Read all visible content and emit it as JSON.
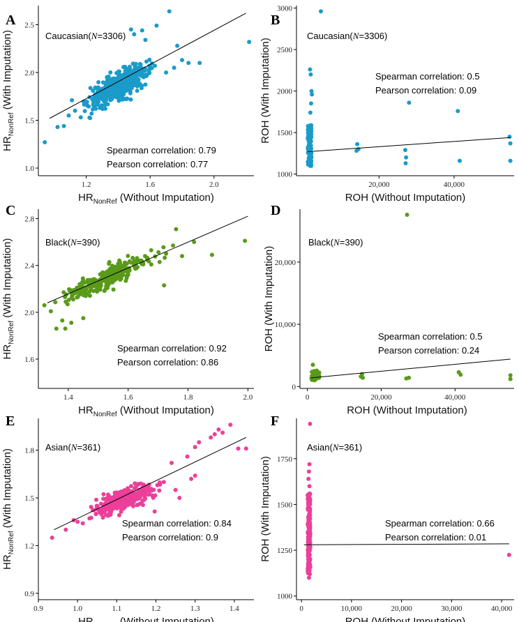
{
  "colors": {
    "caucasian": "#1a9bc9",
    "black": "#5a9a1a",
    "asian": "#ec3f99"
  },
  "chart_data": [
    {
      "type": "scatter",
      "letter": "A",
      "group": "Caucasian(",
      "n_label": "N",
      "n_value": "=3306)",
      "xlabel_prefix": "HR",
      "xlabel_sub": "NonRef",
      "xlabel_suffix": " (Without Imputation)",
      "ylabel_prefix": "HR",
      "ylabel_sub": "NonRef",
      "ylabel_suffix": " (With Imputation)",
      "xlim": [
        0.9,
        2.25
      ],
      "ylim": [
        0.92,
        2.7
      ],
      "xticks": [
        1.2,
        1.6,
        2.0
      ],
      "xtick_labels": [
        "1.2",
        "1.6",
        "2.0"
      ],
      "yticks": [
        1.0,
        1.5,
        2.0,
        2.5
      ],
      "ytick_labels": [
        "1.0",
        "1.5",
        "2.0",
        "2.5"
      ],
      "spearman": "Spearman correlation: 0.79",
      "pearson": "Pearson correlation: 0.77",
      "color_key": "caucasian",
      "fit": [
        [
          0.97,
          1.52
        ],
        [
          2.2,
          2.62
        ]
      ],
      "cluster": {
        "cx": 1.4,
        "cy": 1.86,
        "sx": 0.09,
        "sy": 0.1,
        "rho": 0.75,
        "n": 520
      },
      "points": [
        [
          0.94,
          1.27
        ],
        [
          1.02,
          1.43
        ],
        [
          1.06,
          1.44
        ],
        [
          1.09,
          1.55
        ],
        [
          1.11,
          1.71
        ],
        [
          1.13,
          1.6
        ],
        [
          1.64,
          2.49
        ],
        [
          1.72,
          2.64
        ],
        [
          1.77,
          2.28
        ],
        [
          1.84,
          2.1
        ],
        [
          1.91,
          2.1
        ],
        [
          2.22,
          2.32
        ],
        [
          1.5,
          2.4
        ],
        [
          1.57,
          2.34
        ],
        [
          1.55,
          2.44
        ],
        [
          1.7,
          2.0
        ],
        [
          1.75,
          2.05
        ],
        [
          1.8,
          2.13
        ],
        [
          1.4,
          1.92
        ],
        [
          1.48,
          2.45
        ]
      ]
    },
    {
      "type": "scatter",
      "letter": "B",
      "group": "Caucasian(",
      "n_label": "N",
      "n_value": "=3306)",
      "xlabel": "ROH (Without Imputation)",
      "ylabel": "ROH (With Imputation)",
      "xlim": [
        -2000,
        56000
      ],
      "ylim": [
        980,
        3030
      ],
      "xticks": [
        20000,
        40000
      ],
      "xtick_labels": [
        "20,000",
        "40,000"
      ],
      "yticks": [
        1000,
        1500,
        2000,
        2500,
        3000
      ],
      "ytick_labels": [
        "1000",
        "1500",
        "2000",
        "2500",
        "3000"
      ],
      "spearman": "Spearman correlation: 0.5",
      "pearson": "Pearson correlation: 0.09",
      "color_key": "caucasian",
      "fit": [
        [
          1000,
          1270
        ],
        [
          55000,
          1440
        ]
      ],
      "strip": {
        "x": 1500,
        "xj": 1000,
        "y0": 1090,
        "y1": 1600,
        "n": 120
      },
      "points": [
        [
          1800,
          2200
        ],
        [
          1600,
          2260
        ],
        [
          2000,
          2000
        ],
        [
          2100,
          1960
        ],
        [
          1900,
          1850
        ],
        [
          1700,
          1740
        ],
        [
          4500,
          2960
        ],
        [
          14200,
          1360
        ],
        [
          14500,
          1300
        ],
        [
          14000,
          1280
        ],
        [
          27000,
          1290
        ],
        [
          27200,
          1200
        ],
        [
          27100,
          1130
        ],
        [
          28000,
          1860
        ],
        [
          41000,
          1760
        ],
        [
          41500,
          1160
        ],
        [
          54800,
          1450
        ],
        [
          55000,
          1370
        ],
        [
          55000,
          1160
        ]
      ]
    },
    {
      "type": "scatter",
      "letter": "C",
      "group": "Black(",
      "n_label": "N",
      "n_value": "=390)",
      "xlabel_prefix": "HR",
      "xlabel_sub": "NonRef",
      "xlabel_suffix": " (Without Imputation)",
      "ylabel_prefix": "HR",
      "ylabel_sub": "NonRef",
      "ylabel_suffix": " (With Imputation)",
      "xlim": [
        1.3,
        2.02
      ],
      "ylim": [
        1.35,
        2.88
      ],
      "xticks": [
        1.4,
        1.6,
        1.8,
        2.0
      ],
      "xtick_labels": [
        "1.4",
        "1.6",
        "1.8",
        "2.0"
      ],
      "yticks": [
        1.6,
        2.0,
        2.4,
        2.8
      ],
      "ytick_labels": [
        "1.6",
        "2.0",
        "2.4",
        "2.8"
      ],
      "spearman": "Spearman correlation: 0.92",
      "pearson": "Pearson correlation: 0.86",
      "color_key": "black",
      "fit": [
        [
          1.33,
          2.08
        ],
        [
          2.0,
          2.82
        ]
      ],
      "cluster": {
        "cx": 1.52,
        "cy": 2.28,
        "sx": 0.07,
        "sy": 0.09,
        "rho": 0.88,
        "n": 300
      },
      "points": [
        [
          1.36,
          1.86
        ],
        [
          1.39,
          1.86
        ],
        [
          1.41,
          1.91
        ],
        [
          1.45,
          1.95
        ],
        [
          1.38,
          1.93
        ],
        [
          1.76,
          2.71
        ],
        [
          1.82,
          2.6
        ],
        [
          1.75,
          2.57
        ],
        [
          1.88,
          2.49
        ],
        [
          1.78,
          2.48
        ],
        [
          1.99,
          2.61
        ],
        [
          1.72,
          2.23
        ],
        [
          1.32,
          2.06
        ]
      ]
    },
    {
      "type": "scatter",
      "letter": "D",
      "group": "Black(",
      "n_label": "N",
      "n_value": "=390)",
      "xlabel": "ROH (Without Imputation)",
      "ylabel": "ROH (With Imputation)",
      "xlim": [
        -2000,
        56000
      ],
      "ylim": [
        -300,
        28500
      ],
      "xticks": [
        0,
        20000,
        40000
      ],
      "xtick_labels": [
        "0",
        "20,000",
        "40,000"
      ],
      "yticks": [
        0,
        10000,
        20000
      ],
      "ytick_labels": [
        "0",
        "10,000",
        "20,000"
      ],
      "spearman": "Spearman correlation: 0.5",
      "pearson": "Pearson correlation: 0.24",
      "color_key": "black",
      "fit": [
        [
          1000,
          1400
        ],
        [
          55000,
          4400
        ]
      ],
      "strip": {
        "x": 2200,
        "xj": 2200,
        "y0": 1000,
        "y1": 2600,
        "n": 45
      },
      "points": [
        [
          1500,
          3500
        ],
        [
          14500,
          1600
        ],
        [
          14800,
          2000
        ],
        [
          15000,
          1400
        ],
        [
          27000,
          27600
        ],
        [
          26800,
          1300
        ],
        [
          27500,
          1400
        ],
        [
          41000,
          2300
        ],
        [
          41500,
          1900
        ],
        [
          55000,
          1800
        ],
        [
          55000,
          1200
        ]
      ]
    },
    {
      "type": "scatter",
      "letter": "E",
      "group": "Asian(",
      "n_label": "N",
      "n_value": "=361)",
      "xlabel_prefix": "HR",
      "xlabel_sub": "NonRef",
      "xlabel_suffix": " (Without Imputation)",
      "ylabel_prefix": "HR",
      "ylabel_sub": "NonRef",
      "ylabel_suffix": " (With Imputation)",
      "xlim": [
        0.9,
        1.45
      ],
      "ylim": [
        0.86,
        2.0
      ],
      "xticks": [
        0.9,
        1.0,
        1.1,
        1.2,
        1.3,
        1.4
      ],
      "xtick_labels": [
        "0.9",
        "1.0",
        "1.1",
        "1.2",
        "1.3",
        "1.4"
      ],
      "yticks": [
        0.9,
        1.2,
        1.5,
        1.8
      ],
      "ytick_labels": [
        "0.9",
        "1.2",
        "1.5",
        "1.8"
      ],
      "spearman": "Spearman correlation: 0.84",
      "pearson": "Pearson correlation: 0.9",
      "color_key": "asian",
      "fit": [
        [
          0.94,
          1.3
        ],
        [
          1.43,
          1.88
        ]
      ],
      "cluster": {
        "cx": 1.12,
        "cy": 1.49,
        "sx": 0.04,
        "sy": 0.05,
        "rho": 0.75,
        "n": 300
      },
      "points": [
        [
          0.935,
          1.25
        ],
        [
          0.97,
          1.3
        ],
        [
          0.99,
          1.36
        ],
        [
          1.0,
          1.35
        ],
        [
          1.39,
          1.96
        ],
        [
          1.43,
          1.81
        ],
        [
          1.41,
          1.81
        ],
        [
          1.36,
          1.93
        ],
        [
          1.35,
          1.9
        ],
        [
          1.37,
          1.91
        ],
        [
          1.34,
          1.88
        ],
        [
          1.31,
          1.85
        ],
        [
          1.3,
          1.82
        ],
        [
          1.28,
          1.76
        ],
        [
          1.29,
          1.62
        ],
        [
          1.3,
          1.64
        ],
        [
          1.25,
          1.55
        ],
        [
          1.22,
          1.6
        ],
        [
          1.24,
          1.72
        ],
        [
          1.26,
          1.5
        ],
        [
          1.18,
          1.57
        ]
      ]
    },
    {
      "type": "scatter",
      "letter": "F",
      "group": "Asian(",
      "n_label": "N",
      "n_value": "=361)",
      "xlabel": "ROH (Without Imputation)",
      "ylabel": "ROH (With Imputation)",
      "xlim": [
        -1000,
        42500
      ],
      "ylim": [
        980,
        1970
      ],
      "xticks": [
        0,
        10000,
        20000,
        30000,
        40000
      ],
      "xtick_labels": [
        "0",
        "10,000",
        "20,000",
        "30,000",
        "40,000"
      ],
      "yticks": [
        1000,
        1250,
        1500,
        1750
      ],
      "ytick_labels": [
        "1000",
        "1250",
        "1500",
        "1750"
      ],
      "spearman": "Spearman correlation: 0.66",
      "pearson": "Pearson correlation: 0.01",
      "color_key": "asian",
      "fit": [
        [
          500,
          1280
        ],
        [
          41500,
          1285
        ]
      ],
      "strip": {
        "x": 1500,
        "xj": 500,
        "y0": 1120,
        "y1": 1560,
        "n": 160
      },
      "points": [
        [
          1700,
          1940
        ],
        [
          1600,
          1720
        ],
        [
          1500,
          1680
        ],
        [
          1400,
          1640
        ],
        [
          1600,
          1600
        ],
        [
          1500,
          1100
        ],
        [
          41500,
          1225
        ]
      ]
    }
  ]
}
